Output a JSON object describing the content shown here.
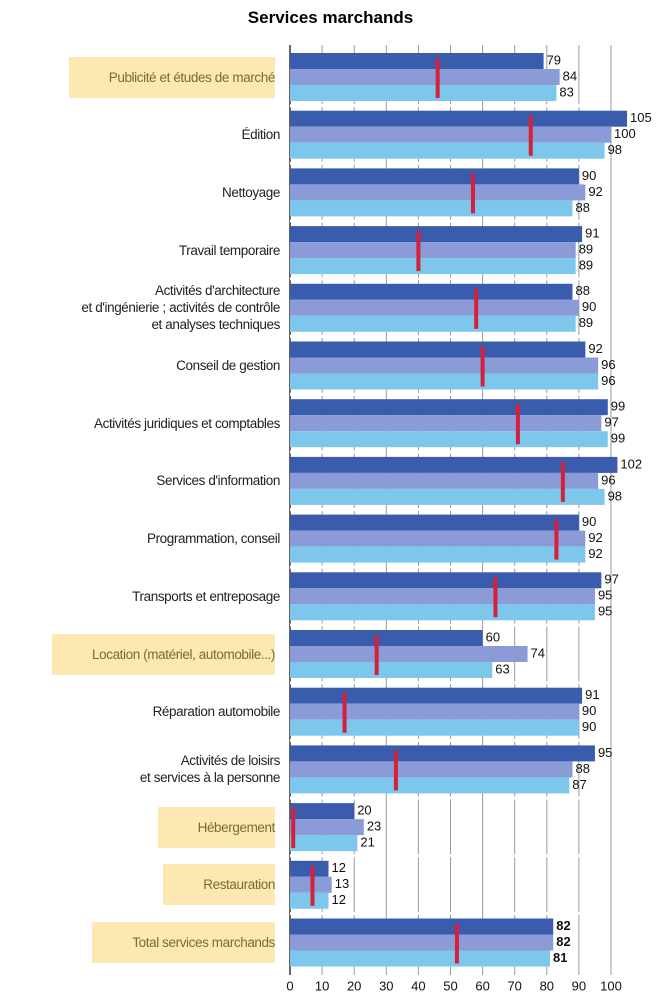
{
  "chart_data": {
    "type": "bar",
    "orientation": "horizontal",
    "title": "Services marchands",
    "categories": [
      "Publicité et études de marché",
      "Édition",
      "Nettoyage",
      "Travail temporaire",
      "Activités d'architecture\net d'ingénierie ; activités de contrôle\net analyses techniques",
      "Conseil de gestion",
      "Activités juridiques et comptables",
      "Services d'information",
      "Programmation, conseil",
      "Transports et entreposage",
      "Location (matériel, automobile...)",
      "Réparation automobile",
      "Activités de loisirs\net services à la personne",
      "Hébergement",
      "Restauration",
      "Total services marchands"
    ],
    "highlight": [
      true,
      false,
      false,
      false,
      false,
      false,
      false,
      false,
      false,
      false,
      true,
      false,
      false,
      true,
      true,
      true
    ],
    "series": [
      {
        "color": "#3a5cad",
        "values": [
          79,
          105,
          90,
          91,
          88,
          92,
          99,
          102,
          90,
          97,
          60,
          91,
          95,
          20,
          12,
          82
        ]
      },
      {
        "color": "#8b9bd7",
        "values": [
          84,
          100,
          92,
          89,
          90,
          96,
          97,
          96,
          92,
          95,
          74,
          90,
          88,
          23,
          13,
          82
        ]
      },
      {
        "color": "#7ec7ec",
        "values": [
          83,
          98,
          88,
          89,
          89,
          96,
          99,
          98,
          92,
          95,
          63,
          90,
          87,
          21,
          12,
          81
        ]
      }
    ],
    "markers": {
      "color": "#d3213c",
      "values": [
        46,
        75,
        57,
        40,
        58,
        60,
        71,
        85,
        83,
        64,
        27,
        17,
        33,
        1,
        7,
        52
      ]
    },
    "xlim": [
      0,
      108
    ],
    "xticks": [
      0,
      10,
      20,
      30,
      40,
      50,
      60,
      70,
      80,
      90,
      100
    ],
    "grid": true
  }
}
